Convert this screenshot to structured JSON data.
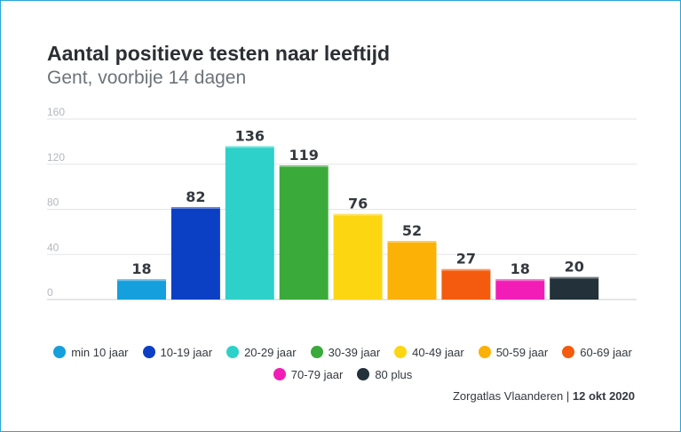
{
  "chart_data": {
    "type": "bar",
    "title": "Aantal positieve testen naar leeftijd",
    "subtitle": "Gent, voorbije 14 dagen",
    "categories": [
      "min 10 jaar",
      "10-19 jaar",
      "20-29 jaar",
      "30-39 jaar",
      "40-49 jaar",
      "50-59 jaar",
      "60-69 jaar",
      "70-79 jaar",
      "80 plus"
    ],
    "values": [
      18,
      82,
      136,
      119,
      76,
      52,
      27,
      18,
      20
    ],
    "colors": [
      "#159fdc",
      "#0b3fc4",
      "#2dd1c9",
      "#3aaa3a",
      "#fdd612",
      "#fbb106",
      "#f55b0e",
      "#f21db6",
      "#22313a"
    ],
    "ylim": [
      0,
      160
    ],
    "yticks": [
      0,
      40,
      80,
      120,
      160
    ],
    "xlabel": "",
    "ylabel": "",
    "grid": true,
    "legend": "bottom-center"
  },
  "source": {
    "name": "Zorgatlas Vlaanderen",
    "separator": " | ",
    "date": "12 okt 2020"
  }
}
